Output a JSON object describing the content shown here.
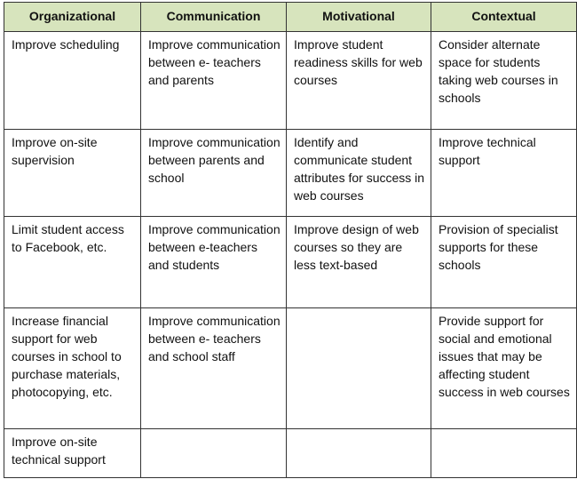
{
  "table": {
    "headers": [
      "Organizational",
      "Communication",
      "Motivational",
      "Contextual"
    ],
    "header_color": "#d7e4bd",
    "rows": [
      [
        "Improve scheduling",
        "Improve communication between e- teachers and parents",
        "Improve student readiness skills for web courses",
        "Consider alternate space for students taking web courses  in schools"
      ],
      [
        "Improve on-site supervision",
        "Improve communication between parents and school",
        "Identify and communicate student attributes for success in web courses",
        "Improve technical support"
      ],
      [
        "Limit student access to Facebook, etc.",
        "Improve communication between e-teachers and students",
        "Improve design of web courses so they are less text-based",
        "Provision of specialist supports for these schools"
      ],
      [
        "Increase financial support for web courses in school to purchase materials, photocopying, etc.",
        "Improve communication between e- teachers and school staff",
        "",
        "Provide support for social and emotional issues that may be affecting student success in web courses"
      ],
      [
        "Improve on-site technical support",
        "",
        "",
        ""
      ]
    ]
  }
}
